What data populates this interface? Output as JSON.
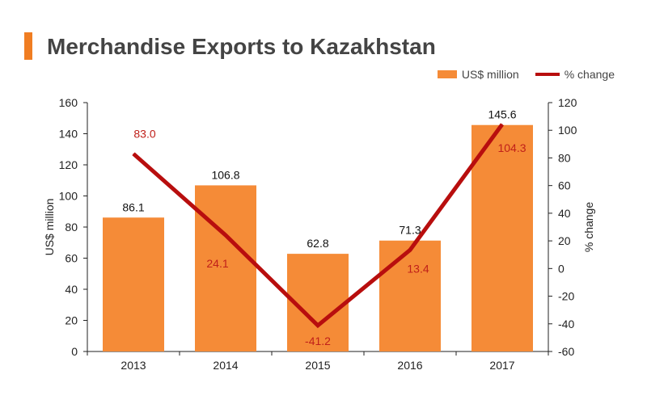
{
  "header": {
    "title": "Merchandise Exports to Kazakhstan"
  },
  "colors": {
    "accent": "#f07d22",
    "bar": "#f58b37",
    "line": "#b80e0e",
    "line_label": "#c0201a",
    "axis": "#222222"
  },
  "chart_data": {
    "type": "bar",
    "categories": [
      "2013",
      "2014",
      "2015",
      "2016",
      "2017"
    ],
    "series": [
      {
        "name": "US$ million",
        "type": "bar",
        "axis": "left",
        "values": [
          86.1,
          106.8,
          62.8,
          71.3,
          145.6
        ],
        "labels": [
          "86.1",
          "106.8",
          "62.8",
          "71.3",
          "145.6"
        ]
      },
      {
        "name": "% change",
        "type": "line",
        "axis": "right",
        "values": [
          83.0,
          24.1,
          -41.2,
          13.4,
          104.3
        ],
        "labels": [
          "83.0",
          "24.1",
          "-41.2",
          "13.4",
          "104.3"
        ]
      }
    ],
    "ylabel": "US$ million",
    "y2label": "% change",
    "ylim": [
      0,
      160
    ],
    "y2lim": [
      -60,
      120
    ],
    "yticks": [
      "0",
      "20",
      "40",
      "60",
      "80",
      "100",
      "120",
      "140",
      "160"
    ],
    "y2ticks": [
      "-60",
      "-40",
      "-20",
      "0",
      "20",
      "40",
      "60",
      "80",
      "100",
      "120"
    ],
    "legend_position": "top-right",
    "grid": false
  }
}
